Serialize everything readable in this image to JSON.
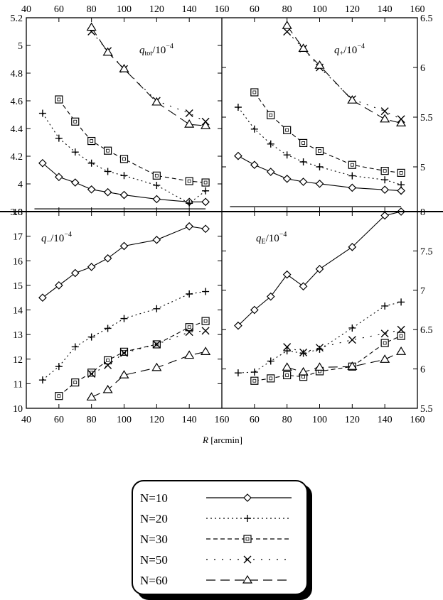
{
  "chart_data": [
    {
      "id": "tl",
      "type": "line",
      "label_var": "q",
      "label_sub": "tot",
      "label_rest": "/10",
      "label_exp": "−4",
      "x_axis_side": "top",
      "y_axis_side": "left",
      "xlim": [
        40,
        160
      ],
      "ylim": [
        3.8,
        5.2
      ],
      "xticks": [
        "40",
        "60",
        "80",
        "100",
        "120",
        "140",
        "160"
      ],
      "yticks": [
        "3.8",
        "4",
        "4.2",
        "4.4",
        "4.6",
        "4.8",
        "5",
        "5.2"
      ],
      "hline": 3.82,
      "series": [
        {
          "name": "N=10",
          "x": [
            50,
            60,
            70,
            80,
            90,
            100,
            120,
            140,
            150
          ],
          "y": [
            4.15,
            4.05,
            4.01,
            3.96,
            3.94,
            3.92,
            3.89,
            3.87,
            3.87
          ]
        },
        {
          "name": "N=20",
          "x": [
            50,
            60,
            70,
            80,
            90,
            100,
            120,
            140,
            150
          ],
          "y": [
            4.51,
            4.33,
            4.23,
            4.15,
            4.09,
            4.06,
            3.99,
            3.86,
            3.95
          ]
        },
        {
          "name": "N=30",
          "x": [
            60,
            70,
            80,
            90,
            100,
            120,
            140,
            150
          ],
          "y": [
            4.61,
            4.45,
            4.31,
            4.24,
            4.18,
            4.06,
            4.02,
            4.01
          ]
        },
        {
          "name": "N=50",
          "x": [
            80,
            90,
            100,
            120,
            140,
            150
          ],
          "y": [
            5.1,
            4.96,
            4.83,
            4.6,
            4.51,
            4.45
          ]
        },
        {
          "name": "N=60",
          "x": [
            80,
            90,
            100,
            120,
            140,
            150
          ],
          "y": [
            5.13,
            4.95,
            4.83,
            4.59,
            4.43,
            4.42
          ]
        }
      ]
    },
    {
      "id": "tr",
      "type": "line",
      "label_var": "q",
      "label_sub": "+",
      "label_rest": "/10",
      "label_exp": "−4",
      "x_axis_side": "top",
      "y_axis_side": "right",
      "xlim": [
        40,
        160
      ],
      "ylim": [
        4.55,
        6.5
      ],
      "xticks": [
        "40",
        "60",
        "80",
        "100",
        "120",
        "140",
        "160"
      ],
      "yticks": [
        "5",
        "5.5",
        "6",
        "6.5"
      ],
      "hline": 4.6,
      "series": [
        {
          "name": "N=10",
          "x": [
            50,
            60,
            70,
            80,
            90,
            100,
            120,
            140,
            150
          ],
          "y": [
            5.11,
            5.02,
            4.95,
            4.88,
            4.85,
            4.83,
            4.79,
            4.77,
            4.76
          ]
        },
        {
          "name": "N=20",
          "x": [
            50,
            60,
            70,
            80,
            90,
            100,
            120,
            140,
            150
          ],
          "y": [
            5.6,
            5.38,
            5.23,
            5.12,
            5.05,
            5.0,
            4.91,
            4.87,
            4.82
          ]
        },
        {
          "name": "N=30",
          "x": [
            60,
            70,
            80,
            90,
            100,
            120,
            140,
            150
          ],
          "y": [
            5.75,
            5.52,
            5.37,
            5.24,
            5.16,
            5.02,
            4.96,
            4.94
          ]
        },
        {
          "name": "N=50",
          "x": [
            80,
            90,
            100,
            120,
            140,
            150
          ],
          "y": [
            6.36,
            6.19,
            6.0,
            5.68,
            5.56,
            5.48
          ]
        },
        {
          "name": "N=60",
          "x": [
            80,
            90,
            100,
            120,
            140,
            150
          ],
          "y": [
            6.42,
            6.19,
            6.02,
            5.67,
            5.48,
            5.44
          ]
        }
      ]
    },
    {
      "id": "bl",
      "type": "line",
      "label_var": "q",
      "label_sub": "−",
      "label_rest": "/10",
      "label_exp": "−4",
      "x_axis_side": "bottom",
      "y_axis_side": "left",
      "xlim": [
        40,
        160
      ],
      "ylim": [
        10,
        18
      ],
      "xticks": [
        "40",
        "60",
        "80",
        "100",
        "120",
        "140",
        "160"
      ],
      "yticks": [
        "10",
        "11",
        "12",
        "13",
        "14",
        "15",
        "16",
        "17",
        "18"
      ],
      "series": [
        {
          "name": "N=10",
          "x": [
            50,
            60,
            70,
            80,
            90,
            100,
            120,
            140,
            150
          ],
          "y": [
            14.5,
            15.0,
            15.5,
            15.75,
            16.1,
            16.6,
            16.85,
            17.4,
            17.3
          ]
        },
        {
          "name": "N=20",
          "x": [
            50,
            60,
            70,
            80,
            90,
            100,
            120,
            140,
            150
          ],
          "y": [
            11.15,
            11.7,
            12.5,
            12.9,
            13.25,
            13.65,
            14.05,
            14.65,
            14.75
          ]
        },
        {
          "name": "N=30",
          "x": [
            60,
            70,
            80,
            90,
            100,
            120,
            140,
            150
          ],
          "y": [
            10.5,
            11.05,
            11.45,
            11.95,
            12.3,
            12.6,
            13.3,
            13.55
          ]
        },
        {
          "name": "N=50",
          "x": [
            80,
            90,
            100,
            120,
            140,
            150
          ],
          "y": [
            11.4,
            11.75,
            12.25,
            12.6,
            13.1,
            13.15
          ]
        },
        {
          "name": "N=60",
          "x": [
            80,
            90,
            100,
            120,
            140,
            150
          ],
          "y": [
            10.45,
            10.75,
            11.35,
            11.65,
            12.15,
            12.3
          ]
        }
      ]
    },
    {
      "id": "br",
      "type": "line",
      "label_var": "q",
      "label_sub": "E",
      "label_rest": "/10",
      "label_exp": "−4",
      "x_axis_side": "bottom",
      "y_axis_side": "right",
      "xlim": [
        40,
        160
      ],
      "ylim": [
        5.5,
        8
      ],
      "xticks": [
        "40",
        "60",
        "80",
        "100",
        "120",
        "140",
        "160"
      ],
      "yticks": [
        "5.5",
        "6",
        "6.5",
        "7",
        "7.5",
        "8"
      ],
      "series": [
        {
          "name": "N=10",
          "x": [
            50,
            60,
            70,
            80,
            90,
            100,
            120,
            140,
            150
          ],
          "y": [
            6.55,
            6.75,
            6.92,
            7.2,
            7.05,
            7.27,
            7.55,
            7.95,
            8.0
          ]
        },
        {
          "name": "N=20",
          "x": [
            50,
            60,
            70,
            80,
            90,
            100,
            120,
            140,
            150
          ],
          "y": [
            5.95,
            5.96,
            6.1,
            6.23,
            6.2,
            6.25,
            6.52,
            6.8,
            6.85
          ]
        },
        {
          "name": "N=30",
          "x": [
            60,
            70,
            80,
            90,
            100,
            120,
            140,
            150
          ],
          "y": [
            5.85,
            5.88,
            5.92,
            5.9,
            5.97,
            6.03,
            6.33,
            6.42
          ]
        },
        {
          "name": "N=50",
          "x": [
            80,
            90,
            100,
            120,
            140,
            150
          ],
          "y": [
            6.28,
            6.21,
            6.27,
            6.37,
            6.45,
            6.5
          ]
        },
        {
          "name": "N=60",
          "x": [
            80,
            90,
            100,
            120,
            140,
            150
          ],
          "y": [
            6.02,
            5.96,
            6.02,
            6.03,
            6.12,
            6.22
          ]
        }
      ]
    }
  ],
  "xlabel_var": "R",
  "xlabel_unit": "[arcmin]",
  "legend": [
    {
      "label": "N=10",
      "marker": "diamond",
      "dash": ""
    },
    {
      "label": "N=20",
      "marker": "plus",
      "dash": "2,4"
    },
    {
      "label": "N=30",
      "marker": "square",
      "dash": "6,4"
    },
    {
      "label": "N=50",
      "marker": "cross",
      "dash": "2,9"
    },
    {
      "label": "N=60",
      "marker": "triangle",
      "dash": "13,7"
    }
  ]
}
